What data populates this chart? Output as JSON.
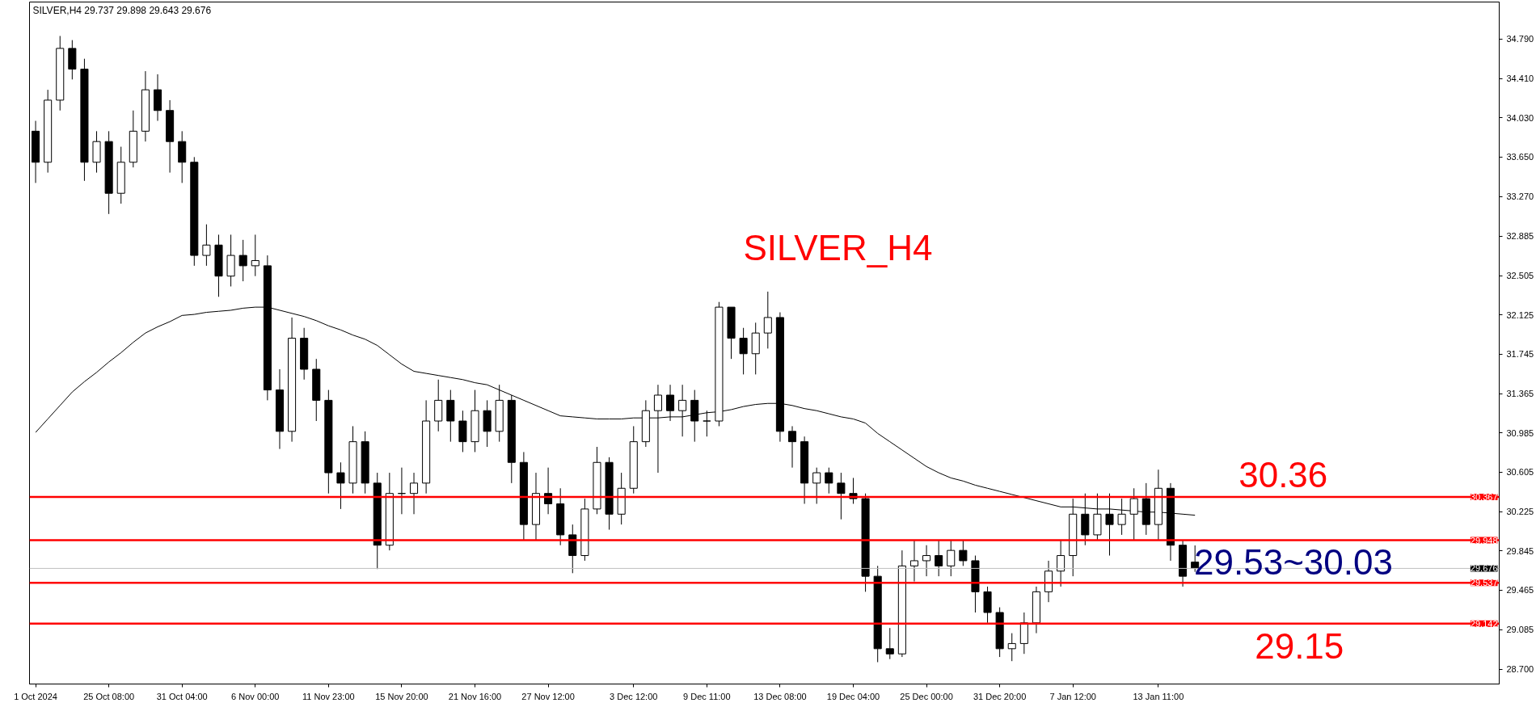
{
  "chart_data": {
    "type": "candlestick",
    "title": "SILVER,H4  29.737 29.898 29.643 29.676",
    "annotations": [
      "SILVER_H4",
      {
        "text": "30.36",
        "y": 30.367
      },
      "29.53~30.03",
      {
        "text": "29.15",
        "y": 29.142
      }
    ],
    "categories": [
      "1 Oct 2024",
      null,
      null,
      null,
      null,
      null,
      "25 Oct 08:00",
      null,
      null,
      null,
      null,
      null,
      "31 Oct 04:00",
      null,
      null,
      null,
      null,
      null,
      "6 Nov 00:00",
      null,
      null,
      null,
      null,
      null,
      "11 Nov 23:00",
      null,
      null,
      null,
      null,
      null,
      "15 Nov 20:00",
      null,
      null,
      null,
      null,
      null,
      "21 Nov 16:00",
      null,
      null,
      null,
      null,
      null,
      "27 Nov 12:00",
      null,
      null,
      null,
      null,
      null,
      null,
      "3 Dec 12:00",
      null,
      null,
      null,
      null,
      null,
      "9 Dec 11:00",
      null,
      null,
      null,
      null,
      null,
      "13 Dec 08:00",
      null,
      null,
      null,
      null,
      null,
      "19 Dec 04:00",
      null,
      null,
      null,
      null,
      null,
      "25 Dec 00:00",
      null,
      null,
      null,
      null,
      null,
      "31 Dec 20:00",
      null,
      null,
      null,
      null,
      null,
      "7 Jan 12:00",
      null,
      null,
      null,
      null,
      null,
      null,
      "13 Jan 11:00",
      null,
      null,
      null
    ],
    "ylim": [
      28.559,
      35.148
    ],
    "yticks": [
      {
        "value": 34.79,
        "label": "34.790"
      },
      {
        "value": 34.41,
        "label": "34.410"
      },
      {
        "value": 34.03,
        "label": "34.030"
      },
      {
        "value": 33.65,
        "label": "33.650"
      },
      {
        "value": 33.27,
        "label": "33.270"
      },
      32.885,
      32.505,
      32.125,
      31.745,
      31.365,
      30.985,
      30.605,
      30.225,
      29.845,
      29.465,
      29.085,
      {
        "value": 28.7,
        "label": "28.700"
      }
    ],
    "grid": false,
    "ref_lines": [
      {
        "axis": "y",
        "value": 30.367,
        "label": "30.367",
        "color": "#ff0000"
      },
      {
        "axis": "y",
        "value": 29.948,
        "label": "29.948",
        "color": "#ff0000"
      },
      {
        "axis": "y",
        "value": 29.537,
        "label": "29.537",
        "color": "#ff0000"
      },
      {
        "axis": "y",
        "value": 29.142,
        "label": "29.142",
        "color": "#ff0000"
      },
      {
        "axis": "y",
        "value": 29.676,
        "label": "29.676",
        "color": "#c0c0c0"
      }
    ],
    "series": [
      {
        "color": "#000000",
        "ohlc": [
          [
            33.9,
            34.0,
            33.4,
            33.6
          ],
          [
            33.6,
            34.3,
            33.5,
            34.2
          ],
          [
            34.2,
            34.82,
            34.1,
            34.7
          ],
          [
            34.7,
            34.78,
            34.4,
            34.5
          ],
          [
            34.5,
            34.6,
            33.42,
            33.6
          ],
          [
            33.6,
            33.9,
            33.5,
            33.8
          ],
          [
            33.8,
            33.9,
            33.1,
            33.3
          ],
          [
            33.3,
            33.75,
            33.2,
            33.6
          ],
          [
            33.6,
            34.1,
            33.55,
            33.9
          ],
          [
            33.9,
            34.48,
            33.8,
            34.3
          ],
          [
            34.3,
            34.45,
            34.0,
            34.1
          ],
          [
            34.1,
            34.2,
            33.5,
            33.8
          ],
          [
            33.8,
            33.9,
            33.4,
            33.6
          ],
          [
            33.6,
            33.65,
            32.6,
            32.7
          ],
          [
            32.7,
            33.0,
            32.6,
            32.8
          ],
          [
            32.8,
            32.9,
            32.3,
            32.5
          ],
          [
            32.5,
            32.9,
            32.4,
            32.7
          ],
          [
            32.7,
            32.85,
            32.45,
            32.6
          ],
          [
            32.6,
            32.9,
            32.5,
            32.65
          ],
          [
            32.6,
            32.7,
            31.3,
            31.4
          ],
          [
            31.4,
            31.6,
            30.83,
            31.0
          ],
          [
            31.0,
            32.1,
            30.9,
            31.9
          ],
          [
            31.9,
            32.0,
            31.5,
            31.6
          ],
          [
            31.6,
            31.7,
            31.1,
            31.3
          ],
          [
            31.3,
            31.4,
            30.4,
            30.6
          ],
          [
            30.6,
            30.7,
            30.25,
            30.5
          ],
          [
            30.5,
            31.05,
            30.4,
            30.9
          ],
          [
            30.9,
            31.0,
            30.4,
            30.5
          ],
          [
            30.5,
            30.6,
            29.67,
            29.9
          ],
          [
            29.9,
            30.6,
            29.85,
            30.4
          ],
          [
            30.4,
            30.65,
            30.2,
            30.4
          ],
          [
            30.4,
            30.6,
            30.2,
            30.5
          ],
          [
            30.5,
            31.3,
            30.4,
            31.1
          ],
          [
            31.1,
            31.5,
            31.0,
            31.3
          ],
          [
            31.3,
            31.4,
            30.9,
            31.1
          ],
          [
            31.1,
            31.2,
            30.8,
            30.9
          ],
          [
            30.9,
            31.4,
            30.8,
            31.2
          ],
          [
            31.2,
            31.3,
            30.85,
            31.0
          ],
          [
            31.0,
            31.45,
            30.9,
            31.3
          ],
          [
            31.3,
            31.35,
            30.5,
            30.7
          ],
          [
            30.7,
            30.8,
            29.95,
            30.1
          ],
          [
            30.1,
            30.6,
            29.95,
            30.4
          ],
          [
            30.4,
            30.65,
            30.2,
            30.3
          ],
          [
            30.3,
            30.45,
            29.9,
            30.0
          ],
          [
            30.0,
            30.1,
            29.63,
            29.8
          ],
          [
            29.8,
            30.35,
            29.75,
            30.25
          ],
          [
            30.25,
            30.85,
            30.2,
            30.7
          ],
          [
            30.7,
            30.75,
            30.05,
            30.2
          ],
          [
            30.2,
            30.6,
            30.1,
            30.45
          ],
          [
            30.45,
            31.05,
            30.4,
            30.9
          ],
          [
            30.9,
            31.3,
            30.85,
            31.2
          ],
          [
            31.2,
            31.45,
            30.6,
            31.35
          ],
          [
            31.35,
            31.45,
            31.1,
            31.2
          ],
          [
            31.2,
            31.45,
            30.95,
            31.3
          ],
          [
            31.3,
            31.4,
            30.9,
            31.1
          ],
          [
            31.1,
            31.2,
            30.95,
            31.1
          ],
          [
            31.1,
            32.25,
            31.05,
            32.2
          ],
          [
            32.2,
            32.2,
            31.7,
            31.9
          ],
          [
            31.9,
            32.0,
            31.55,
            31.75
          ],
          [
            31.75,
            32.05,
            31.55,
            31.95
          ],
          [
            31.95,
            32.35,
            31.8,
            32.1
          ],
          [
            32.1,
            32.15,
            30.9,
            31.0
          ],
          [
            31.0,
            31.05,
            30.65,
            30.9
          ],
          [
            30.9,
            30.95,
            30.3,
            30.5
          ],
          [
            30.5,
            30.65,
            30.3,
            30.6
          ],
          [
            30.6,
            30.65,
            30.4,
            30.5
          ],
          [
            30.5,
            30.6,
            30.15,
            30.4
          ],
          [
            30.4,
            30.55,
            30.3,
            30.35
          ],
          [
            30.35,
            30.4,
            29.45,
            29.6
          ],
          [
            29.6,
            29.7,
            28.77,
            28.9
          ],
          [
            28.9,
            29.1,
            28.8,
            28.85
          ],
          [
            28.85,
            29.85,
            28.82,
            29.7
          ],
          [
            29.7,
            29.95,
            29.55,
            29.75
          ],
          [
            29.75,
            29.9,
            29.6,
            29.8
          ],
          [
            29.8,
            29.95,
            29.6,
            29.7
          ],
          [
            29.7,
            29.95,
            29.6,
            29.85
          ],
          [
            29.85,
            29.95,
            29.7,
            29.75
          ],
          [
            29.75,
            29.8,
            29.25,
            29.45
          ],
          [
            29.45,
            29.5,
            29.15,
            29.25
          ],
          [
            29.25,
            29.3,
            28.82,
            28.9
          ],
          [
            28.9,
            29.05,
            28.78,
            28.95
          ],
          [
            28.95,
            29.25,
            28.85,
            29.15
          ],
          [
            29.15,
            29.5,
            29.05,
            29.45
          ],
          [
            29.45,
            29.75,
            29.35,
            29.65
          ],
          [
            29.65,
            29.95,
            29.5,
            29.8
          ],
          [
            29.8,
            30.35,
            29.6,
            30.2
          ],
          [
            30.2,
            30.4,
            29.9,
            30.0
          ],
          [
            30.0,
            30.4,
            29.95,
            30.2
          ],
          [
            30.2,
            30.4,
            29.8,
            30.1
          ],
          [
            30.1,
            30.35,
            30.0,
            30.2
          ],
          [
            30.2,
            30.45,
            29.95,
            30.35
          ],
          [
            30.35,
            30.5,
            30.0,
            30.1
          ],
          [
            30.1,
            30.63,
            29.95,
            30.45
          ],
          [
            30.45,
            30.5,
            29.75,
            29.9
          ],
          [
            29.9,
            29.95,
            29.5,
            29.6
          ],
          [
            29.737,
            29.898,
            29.643,
            29.676
          ]
        ]
      },
      {
        "type": "line",
        "color": "#000000",
        "values": [
          30.99,
          31.12,
          31.25,
          31.38,
          31.48,
          31.57,
          31.67,
          31.76,
          31.86,
          31.95,
          32.01,
          32.06,
          32.12,
          32.13,
          32.15,
          32.16,
          32.17,
          32.19,
          32.2,
          32.2,
          32.17,
          32.14,
          32.11,
          32.07,
          32.02,
          31.98,
          31.93,
          31.89,
          31.83,
          31.74,
          31.65,
          31.58,
          31.56,
          31.54,
          31.52,
          31.5,
          31.47,
          31.45,
          31.4,
          31.35,
          31.3,
          31.25,
          31.2,
          31.15,
          31.14,
          31.13,
          31.12,
          31.12,
          31.12,
          31.13,
          31.13,
          31.13,
          31.14,
          31.14,
          31.16,
          31.18,
          31.19,
          31.21,
          31.24,
          31.26,
          31.27,
          31.27,
          31.25,
          31.22,
          31.2,
          31.17,
          31.14,
          31.12,
          31.08,
          30.98,
          30.9,
          30.82,
          30.74,
          30.66,
          30.6,
          30.55,
          30.52,
          30.48,
          30.45,
          30.42,
          30.39,
          30.36,
          30.33,
          30.3,
          30.27,
          30.27,
          30.26,
          30.25,
          30.25,
          30.24,
          30.23,
          30.22,
          30.22,
          30.21,
          30.2,
          30.19
        ]
      }
    ]
  }
}
